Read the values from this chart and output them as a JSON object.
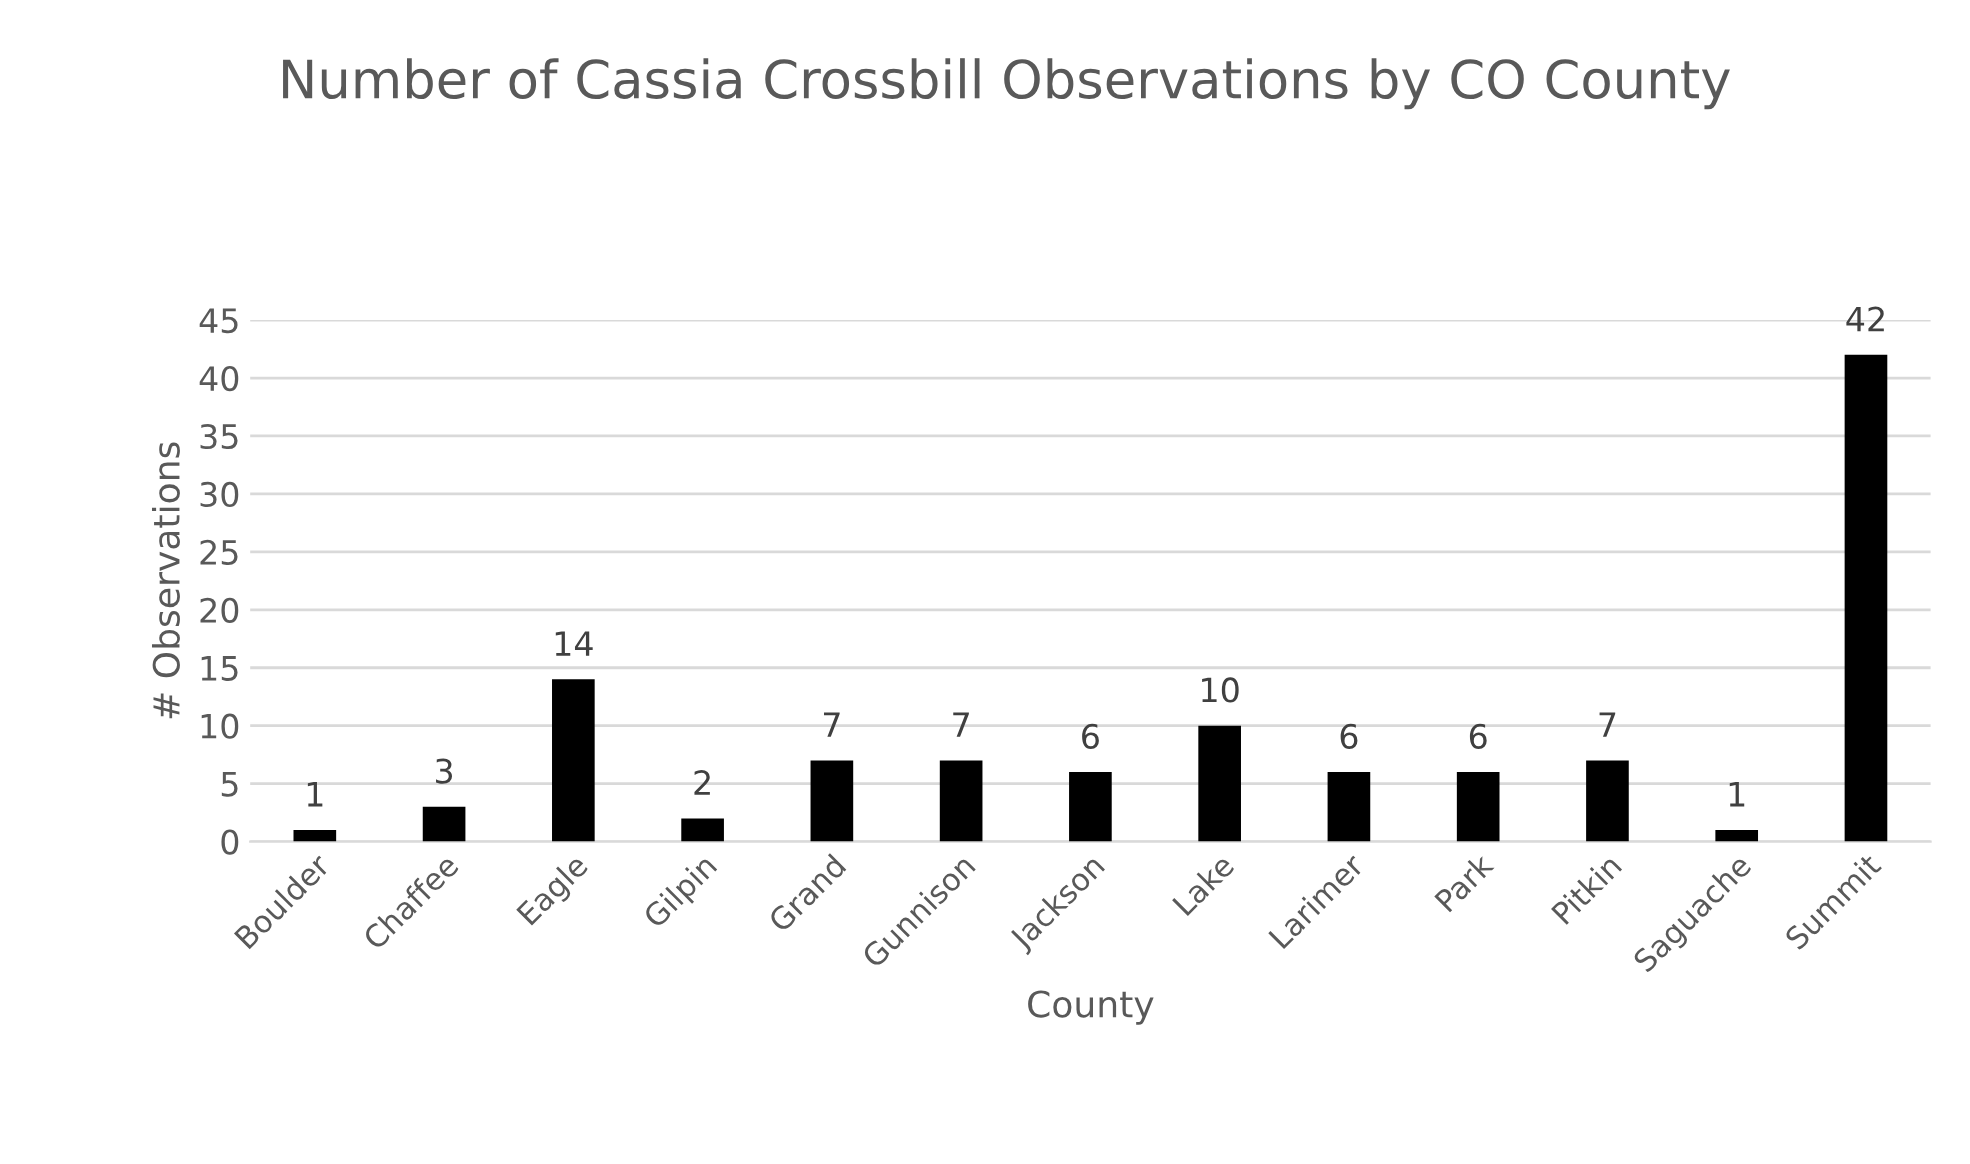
{
  "chart_data": {
    "type": "bar",
    "title": "Number of Cassia Crossbill Observations by CO County",
    "xlabel": "County",
    "ylabel": "# Observations",
    "categories": [
      "Boulder",
      "Chaffee",
      "Eagle",
      "Gilpin",
      "Grand",
      "Gunnison",
      "Jackson",
      "Lake",
      "Larimer",
      "Park",
      "Pitkin",
      "Saguache",
      "Summit"
    ],
    "values": [
      1,
      3,
      14,
      2,
      7,
      7,
      6,
      10,
      6,
      6,
      7,
      1,
      42
    ],
    "color": "#000000",
    "ylim": [
      0,
      45
    ],
    "yticks": [
      0,
      5,
      10,
      15,
      20,
      25,
      30,
      35,
      40,
      45
    ],
    "grid": "y",
    "data_labels": true
  }
}
